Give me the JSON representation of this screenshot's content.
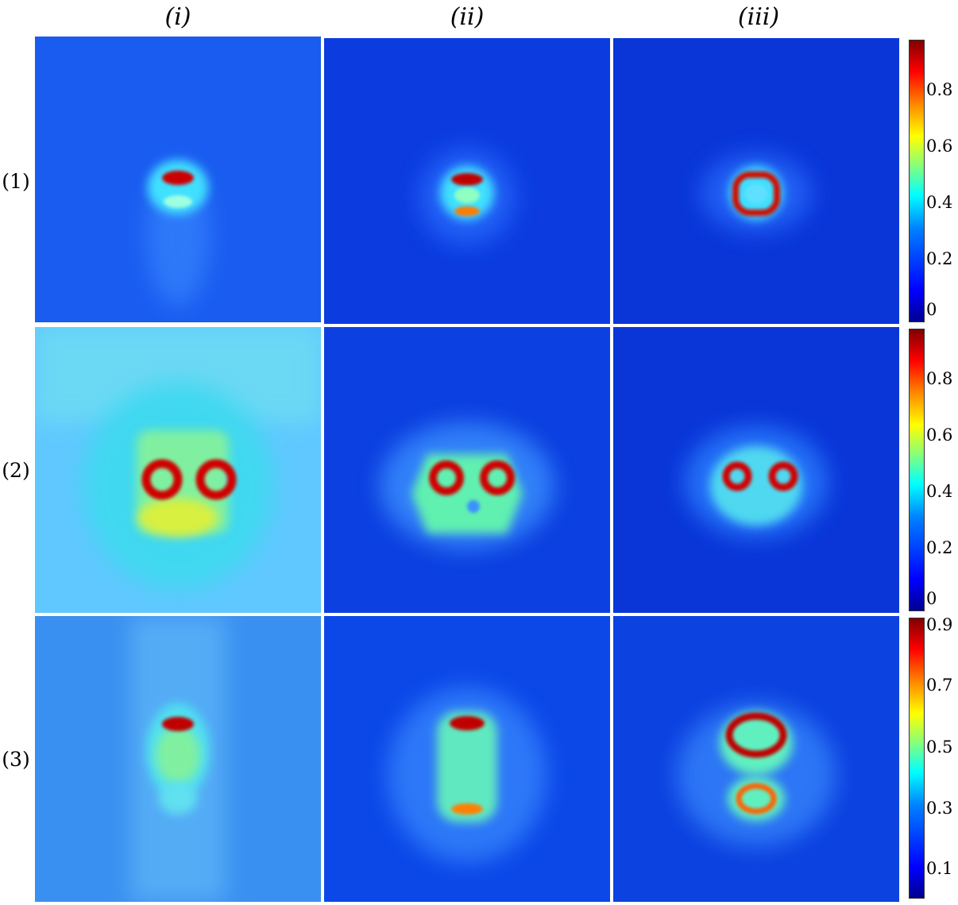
{
  "columns": [
    "(i)",
    "(ii)",
    "(iii)"
  ],
  "rows": [
    "(1)",
    "(2)",
    "(3)"
  ],
  "colorbars": [
    {
      "ticks": [
        "0.8",
        "0.6",
        "0.4",
        "0.2",
        "0"
      ]
    },
    {
      "ticks": [
        "0.8",
        "0.6",
        "0.4",
        "0.2",
        "0"
      ]
    },
    {
      "ticks": [
        "0.9",
        "0.7",
        "0.5",
        "0.3",
        "0.1"
      ]
    }
  ],
  "colormap": {
    "low": "#00008f",
    "mid": "#00ffff",
    "high": "#800000"
  }
}
